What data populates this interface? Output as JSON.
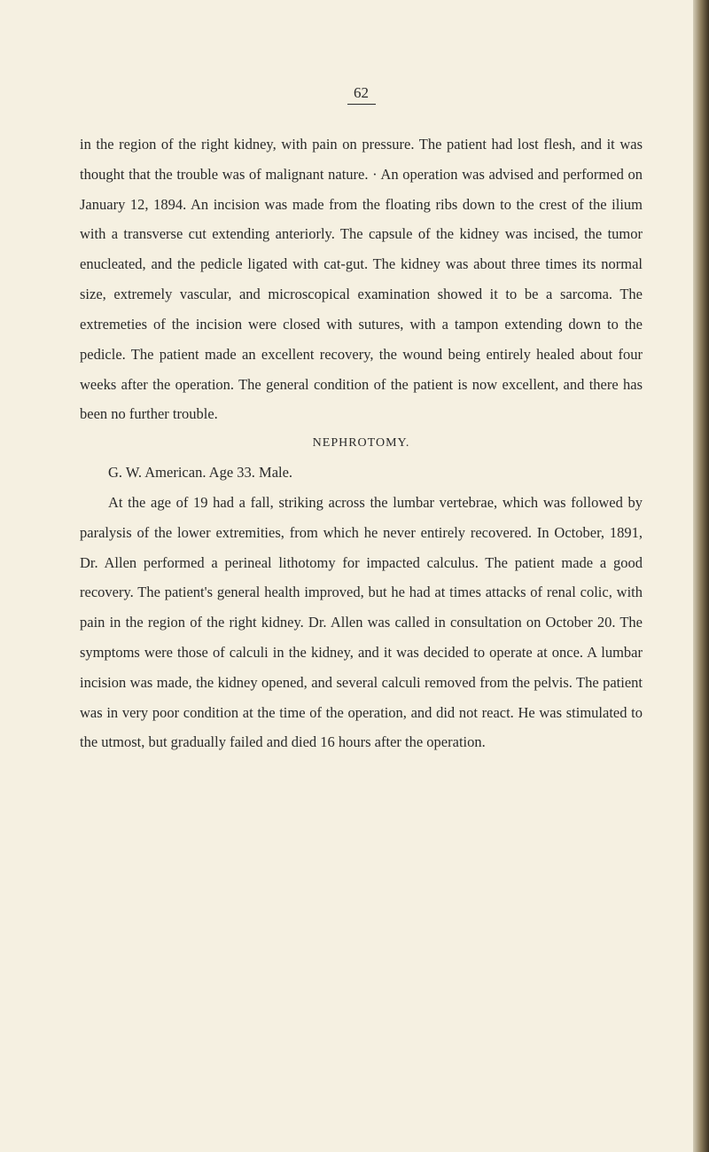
{
  "page": {
    "number": "62",
    "background_color": "#f5f0e1",
    "text_color": "#2a2a2a",
    "font_family": "Georgia, Times New Roman, serif",
    "body_font_size": 16.5,
    "line_height": 2.05
  },
  "paragraphs": {
    "p1": "in the region of the right kidney, with pain on pressure. The patient had lost flesh, and it was thought that the trouble was of malignant nature. · An operation was advised and performed on January 12, 1894. An incision was made from the floating ribs down to the crest of the ilium with a transverse cut extending anteriorly. The capsule of the kidney was incised, the tumor enucleated, and the pedicle ligated with cat-gut. The kidney was about three times its normal size, extremely vascular, and microscopical examination showed it to be a sarcoma. The extremeties of the incision were closed with sutures, with a tampon extending down to the pedicle. The patient made an excellent recovery, the wound being entirely healed about four weeks after the operation. The general condition of the patient is now excellent, and there has been no further trouble.",
    "heading": "NEPHROTOMY.",
    "p2": "G. W. American. Age 33. Male.",
    "p3": "At the age of 19 had a fall, striking across the lumbar vertebrae, which was followed by paralysis of the lower extremities, from which he never entirely recovered. In October, 1891, Dr. Allen performed a perineal lithotomy for impacted calculus. The patient made a good recovery. The patient's general health improved, but he had at times attacks of renal colic, with pain in the region of the right kidney. Dr. Allen was called in consultation on October 20. The symptoms were those of calculi in the kidney, and it was decided to operate at once. A lumbar incision was made, the kidney opened, and several calculi removed from the pelvis. The patient was in very poor condition at the time of the operation, and did not react. He was stimulated to the utmost, but gradually failed and died 16 hours after the operation."
  }
}
